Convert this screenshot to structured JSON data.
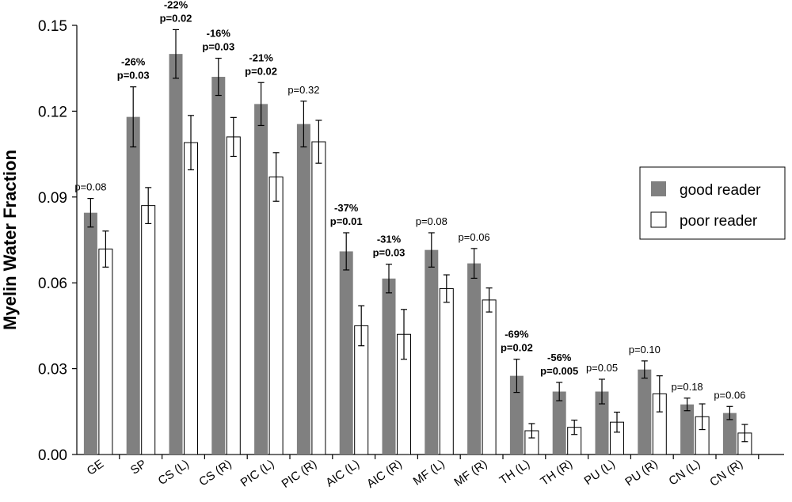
{
  "chart_data": {
    "type": "bar",
    "title": "",
    "xlabel": "",
    "ylabel": "Myelin Water Fraction",
    "ylim": [
      0,
      0.15
    ],
    "yticks": [
      "0.00",
      "0.03",
      "0.06",
      "0.09",
      "0.12",
      "0.15"
    ],
    "grid": false,
    "legend_position": "right",
    "categories": [
      "GE",
      "SP",
      "CS (L)",
      "CS (R)",
      "PIC (L)",
      "PIC (R)",
      "AIC (L)",
      "AIC (R)",
      "MF (L)",
      "MF (R)",
      "TH (L)",
      "TH (R)",
      "PU (L)",
      "PU (R)",
      "CN (L)",
      "CN (R)"
    ],
    "series": [
      {
        "name": "good reader",
        "color": "#808080",
        "values": [
          0.0845,
          0.118,
          0.14,
          0.132,
          0.1225,
          0.1155,
          0.071,
          0.0615,
          0.0715,
          0.0668,
          0.0275,
          0.022,
          0.022,
          0.0297,
          0.0175,
          0.0145
        ],
        "error": [
          0.005,
          0.0105,
          0.0085,
          0.0065,
          0.0075,
          0.008,
          0.0065,
          0.005,
          0.006,
          0.0052,
          0.0058,
          0.0032,
          0.0043,
          0.003,
          0.0022,
          0.0023
        ]
      },
      {
        "name": "poor reader",
        "color": "#ffffff",
        "values": [
          0.0718,
          0.087,
          0.109,
          0.111,
          0.097,
          0.1093,
          0.045,
          0.042,
          0.058,
          0.054,
          0.0083,
          0.0095,
          0.0113,
          0.0212,
          0.0132,
          0.0075
        ],
        "error": [
          0.0063,
          0.0063,
          0.0095,
          0.0068,
          0.0085,
          0.0075,
          0.007,
          0.0087,
          0.0048,
          0.0042,
          0.0025,
          0.0025,
          0.0035,
          0.0063,
          0.0045,
          0.003
        ]
      }
    ],
    "annotations": [
      {
        "category": "GE",
        "lines": [
          "p=0.08"
        ],
        "bold": false
      },
      {
        "category": "SP",
        "lines": [
          "-26%",
          "p=0.03"
        ],
        "bold": true
      },
      {
        "category": "CS (L)",
        "lines": [
          "-22%",
          "p=0.02"
        ],
        "bold": true
      },
      {
        "category": "CS (R)",
        "lines": [
          "-16%",
          "p=0.03"
        ],
        "bold": true
      },
      {
        "category": "PIC (L)",
        "lines": [
          "-21%",
          "p=0.02"
        ],
        "bold": true
      },
      {
        "category": "PIC (R)",
        "lines": [
          "p=0.32"
        ],
        "bold": false
      },
      {
        "category": "AIC (L)",
        "lines": [
          "-37%",
          "p=0.01"
        ],
        "bold": true
      },
      {
        "category": "AIC (R)",
        "lines": [
          "-31%",
          "p=0.03"
        ],
        "bold": true
      },
      {
        "category": "MF (L)",
        "lines": [
          "p=0.08"
        ],
        "bold": false
      },
      {
        "category": "MF (R)",
        "lines": [
          "p=0.06"
        ],
        "bold": false
      },
      {
        "category": "TH (L)",
        "lines": [
          "-69%",
          "p=0.02"
        ],
        "bold": true
      },
      {
        "category": "TH (R)",
        "lines": [
          "-56%",
          "p=0.005"
        ],
        "bold": true
      },
      {
        "category": "PU (L)",
        "lines": [
          "p=0.05"
        ],
        "bold": false
      },
      {
        "category": "PU (R)",
        "lines": [
          "p=0.10"
        ],
        "bold": false
      },
      {
        "category": "CN (L)",
        "lines": [
          "p=0.18"
        ],
        "bold": false
      },
      {
        "category": "CN (R)",
        "lines": [
          "p=0.06"
        ],
        "bold": false
      }
    ]
  }
}
